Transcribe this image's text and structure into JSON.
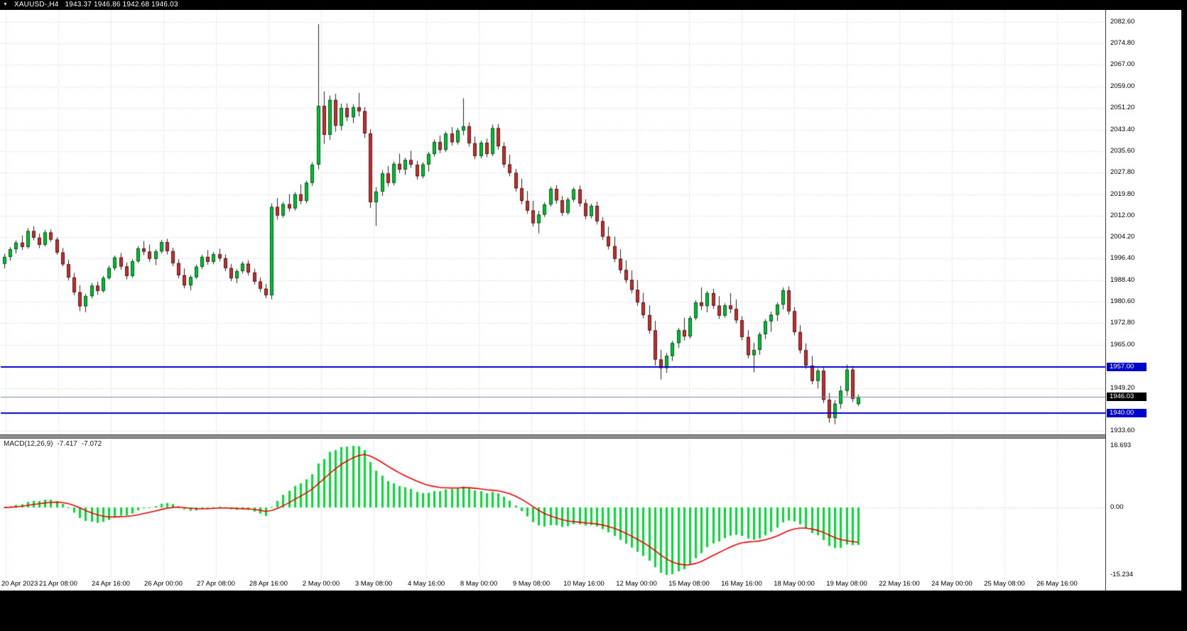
{
  "window": {
    "symbol_period": "XAUUSD-,H4",
    "ohlc_text": "1943.37 1946.86 1942.68 1946.03"
  },
  "macd": {
    "label": "MACD(12,26,9)",
    "value_main": "-7.417",
    "value_signal": "-7.072",
    "axis_labels": [
      "16.693",
      "0.00",
      "-15.234"
    ]
  },
  "price_axis": {
    "labels": [
      "2082.60",
      "2074.80",
      "2067.00",
      "2059.00",
      "2051.20",
      "2043.40",
      "2035.60",
      "2027.80",
      "2019.80",
      "2012.00",
      "2004.20",
      "1996.40",
      "1988.40",
      "1980.60",
      "1972.80",
      "1965.00",
      "1949.20",
      "1933.60"
    ],
    "level_tags": [
      {
        "text": "1957.00",
        "value": 1957.0,
        "style": "blue"
      },
      {
        "text": "1946.03",
        "value": 1946.03,
        "style": "black"
      },
      {
        "text": "1940.00",
        "value": 1940.0,
        "style": "blue"
      }
    ]
  },
  "time_axis": {
    "labels": [
      "20 Apr 2023",
      "21 Apr 08:00",
      "24 Apr 16:00",
      "26 Apr 00:00",
      "27 Apr 08:00",
      "28 Apr 16:00",
      "2 May 00:00",
      "3 May 08:00",
      "4 May 16:00",
      "8 May 00:00",
      "9 May 08:00",
      "10 May 16:00",
      "12 May 00:00",
      "15 May 08:00",
      "16 May 16:00",
      "18 May 00:00",
      "19 May 08:00",
      "22 May 16:00",
      "24 May 00:00",
      "25 May 08:00",
      "26 May 16:00"
    ]
  },
  "colors": {
    "bull": "#00C032",
    "bull_border": "#00581A",
    "bear": "#C03030",
    "bear_border": "#5E1414",
    "wick": "#222222",
    "grid": "#CDCDCD",
    "level_line": "#0000C8",
    "bid_line": "#7A8BA0",
    "hist": "#00DC32",
    "signal": "#E80000",
    "background": "#FFFFFF",
    "frame": "#000000"
  },
  "chart_data": {
    "type": "candlestick",
    "title": "XAUUSD-,H4",
    "symbol": "XAUUSD-",
    "timeframe": "H4",
    "last_bar": {
      "open": 1943.37,
      "high": 1946.86,
      "low": 1942.68,
      "close": 1946.03
    },
    "levels": [
      1957.0,
      1940.0
    ],
    "current_price": 1946.03,
    "price_range_shown": [
      1933.6,
      2082.6
    ],
    "indicator": {
      "type": "macd",
      "params": [
        12,
        26,
        9
      ],
      "main_last": -7.417,
      "signal_last": -7.072,
      "scale_max": 16.693,
      "scale_min": -15.234
    },
    "candles": [
      [
        1994.5,
        1998.2,
        1992.8,
        1997.0
      ],
      [
        1997.0,
        2000.5,
        1995.6,
        1999.8
      ],
      [
        1999.8,
        2003.0,
        1998.2,
        2002.2
      ],
      [
        2002.2,
        2004.8,
        1999.5,
        2000.6
      ],
      [
        2000.6,
        2007.5,
        2000.0,
        2006.4
      ],
      [
        2006.4,
        2008.2,
        2003.1,
        2004.0
      ],
      [
        2004.0,
        2005.5,
        2000.2,
        2001.4
      ],
      [
        2001.4,
        2006.8,
        2000.8,
        2005.9
      ],
      [
        2005.9,
        2007.0,
        2002.5,
        2003.3
      ],
      [
        2003.3,
        2004.1,
        1997.8,
        1998.6
      ],
      [
        1998.6,
        2000.2,
        1993.5,
        1994.3
      ],
      [
        1994.3,
        1996.0,
        1988.4,
        1989.5
      ],
      [
        1989.5,
        1991.2,
        1983.0,
        1984.1
      ],
      [
        1984.1,
        1986.6,
        1977.2,
        1979.0
      ],
      [
        1979.0,
        1983.5,
        1976.8,
        1982.7
      ],
      [
        1982.7,
        1987.4,
        1981.9,
        1986.5
      ],
      [
        1986.5,
        1988.0,
        1983.2,
        1984.6
      ],
      [
        1984.6,
        1990.1,
        1984.0,
        1989.3
      ],
      [
        1989.3,
        1993.8,
        1988.6,
        1992.9
      ],
      [
        1992.9,
        1997.5,
        1992.0,
        1996.8
      ],
      [
        1996.8,
        1998.4,
        1992.3,
        1993.5
      ],
      [
        1993.5,
        1995.0,
        1988.8,
        1990.0
      ],
      [
        1990.0,
        1996.2,
        1989.4,
        1995.4
      ],
      [
        1995.4,
        2000.9,
        1994.8,
        2000.1
      ],
      [
        2000.1,
        2002.8,
        1997.6,
        1998.9
      ],
      [
        1998.9,
        2001.5,
        1995.2,
        1996.3
      ],
      [
        1996.3,
        1999.8,
        1994.0,
        1999.0
      ],
      [
        1999.0,
        2003.2,
        1998.2,
        2002.4
      ],
      [
        2002.4,
        2003.6,
        1997.9,
        1999.1
      ],
      [
        1999.1,
        2000.3,
        1993.6,
        1994.7
      ],
      [
        1994.7,
        1996.1,
        1989.2,
        1990.3
      ],
      [
        1990.3,
        1992.8,
        1985.5,
        1986.6
      ],
      [
        1986.6,
        1990.4,
        1984.8,
        1989.6
      ],
      [
        1989.6,
        1994.2,
        1988.9,
        1993.4
      ],
      [
        1993.4,
        1997.8,
        1992.5,
        1997.0
      ],
      [
        1997.0,
        1999.5,
        1994.1,
        1995.2
      ],
      [
        1995.2,
        1998.8,
        1994.3,
        1998.0
      ],
      [
        1998.0,
        2000.0,
        1995.4,
        1996.5
      ],
      [
        1996.5,
        1997.9,
        1991.8,
        1992.9
      ],
      [
        1992.9,
        1994.4,
        1988.1,
        1989.2
      ],
      [
        1989.2,
        1992.6,
        1987.4,
        1991.8
      ],
      [
        1991.8,
        1995.3,
        1990.9,
        1994.5
      ],
      [
        1994.5,
        1995.8,
        1990.2,
        1991.3
      ],
      [
        1991.3,
        1992.7,
        1986.9,
        1988.0
      ],
      [
        1988.0,
        1989.5,
        1984.2,
        1985.4
      ],
      [
        1985.4,
        1987.1,
        1981.9,
        1983.0
      ],
      [
        1983.0,
        2016.5,
        1981.5,
        2015.2
      ],
      [
        2015.2,
        2018.4,
        2010.6,
        2012.1
      ],
      [
        2012.1,
        2017.0,
        2011.3,
        2016.2
      ],
      [
        2016.2,
        2019.8,
        2013.5,
        2014.7
      ],
      [
        2014.7,
        2020.6,
        2013.9,
        2019.8
      ],
      [
        2019.8,
        2023.4,
        2016.2,
        2017.4
      ],
      [
        2017.4,
        2024.8,
        2016.6,
        2024.0
      ],
      [
        2024.0,
        2031.5,
        2022.8,
        2030.6
      ],
      [
        2030.6,
        2081.8,
        2028.9,
        2052.0
      ],
      [
        2052.0,
        2057.3,
        2038.2,
        2041.5
      ],
      [
        2041.5,
        2055.8,
        2039.7,
        2054.2
      ],
      [
        2054.2,
        2056.4,
        2042.6,
        2044.8
      ],
      [
        2044.8,
        2052.9,
        2043.1,
        2051.3
      ],
      [
        2051.3,
        2053.0,
        2046.5,
        2047.9
      ],
      [
        2047.9,
        2052.6,
        2045.8,
        2051.5
      ],
      [
        2051.5,
        2056.8,
        2048.2,
        2050.1
      ],
      [
        2050.1,
        2051.6,
        2040.3,
        2042.0
      ],
      [
        2042.0,
        2043.5,
        2014.8,
        2016.9
      ],
      [
        2016.9,
        2022.4,
        2008.3,
        2020.8
      ],
      [
        2020.8,
        2028.6,
        2019.2,
        2027.4
      ],
      [
        2027.4,
        2030.1,
        2022.7,
        2024.0
      ],
      [
        2024.0,
        2031.8,
        2023.1,
        2030.9
      ],
      [
        2030.9,
        2034.6,
        2027.5,
        2028.8
      ],
      [
        2028.8,
        2033.2,
        2026.9,
        2032.3
      ],
      [
        2032.3,
        2035.7,
        2029.4,
        2030.6
      ],
      [
        2030.6,
        2032.0,
        2025.2,
        2026.4
      ],
      [
        2026.4,
        2031.5,
        2025.6,
        2030.7
      ],
      [
        2030.7,
        2035.3,
        2028.1,
        2034.5
      ],
      [
        2034.5,
        2039.8,
        2033.6,
        2038.9
      ],
      [
        2038.9,
        2041.2,
        2034.8,
        2036.0
      ],
      [
        2036.0,
        2042.7,
        2035.2,
        2041.9
      ],
      [
        2041.9,
        2044.3,
        2037.6,
        2038.8
      ],
      [
        2038.8,
        2043.9,
        2037.9,
        2043.1
      ],
      [
        2043.1,
        2054.8,
        2041.3,
        2044.6
      ],
      [
        2044.6,
        2046.0,
        2037.2,
        2038.4
      ],
      [
        2038.4,
        2040.9,
        2032.6,
        2033.8
      ],
      [
        2033.8,
        2039.4,
        2032.9,
        2038.6
      ],
      [
        2038.6,
        2040.1,
        2033.3,
        2034.5
      ],
      [
        2034.5,
        2045.2,
        2033.7,
        2043.9
      ],
      [
        2043.9,
        2045.4,
        2036.1,
        2037.3
      ],
      [
        2037.3,
        2038.8,
        2029.5,
        2030.7
      ],
      [
        2030.7,
        2034.2,
        2026.4,
        2027.6
      ],
      [
        2027.6,
        2029.1,
        2020.8,
        2022.0
      ],
      [
        2022.0,
        2025.5,
        2016.2,
        2017.4
      ],
      [
        2017.4,
        2021.0,
        2012.7,
        2013.9
      ],
      [
        2013.9,
        2017.4,
        2008.1,
        2009.3
      ],
      [
        2009.3,
        2013.8,
        2005.6,
        2012.4
      ],
      [
        2012.4,
        2016.9,
        2011.5,
        2016.1
      ],
      [
        2016.1,
        2022.6,
        2015.3,
        2021.8
      ],
      [
        2021.8,
        2023.1,
        2016.4,
        2017.6
      ],
      [
        2017.6,
        2019.2,
        2011.9,
        2013.1
      ],
      [
        2013.1,
        2018.7,
        2012.3,
        2017.9
      ],
      [
        2017.9,
        2022.4,
        2017.0,
        2021.6
      ],
      [
        2021.6,
        2023.0,
        2015.3,
        2016.5
      ],
      [
        2016.5,
        2018.0,
        2010.7,
        2011.9
      ],
      [
        2011.9,
        2016.4,
        2011.0,
        2015.6
      ],
      [
        2015.6,
        2017.1,
        2008.8,
        2010.0
      ],
      [
        2010.0,
        2011.5,
        2003.2,
        2004.4
      ],
      [
        2004.4,
        2008.0,
        1999.7,
        2000.9
      ],
      [
        2000.9,
        2004.4,
        1995.1,
        1996.3
      ],
      [
        1996.3,
        1999.8,
        1991.0,
        1992.2
      ],
      [
        1992.2,
        1995.7,
        1987.4,
        1988.6
      ],
      [
        1988.6,
        1992.1,
        1983.8,
        1985.0
      ],
      [
        1985.0,
        1988.5,
        1979.2,
        1980.4
      ],
      [
        1980.4,
        1983.9,
        1974.6,
        1975.8
      ],
      [
        1975.8,
        1979.3,
        1969.0,
        1970.2
      ],
      [
        1970.2,
        1973.7,
        1957.4,
        1959.6
      ],
      [
        1959.6,
        1963.1,
        1952.3,
        1956.5
      ],
      [
        1956.5,
        1962.0,
        1954.7,
        1960.9
      ],
      [
        1960.9,
        1966.4,
        1959.1,
        1965.6
      ],
      [
        1965.6,
        1971.1,
        1963.8,
        1970.3
      ],
      [
        1970.3,
        1974.8,
        1966.5,
        1968.0
      ],
      [
        1968.0,
        1975.5,
        1967.2,
        1974.7
      ],
      [
        1974.7,
        1981.2,
        1973.9,
        1980.4
      ],
      [
        1980.4,
        1985.9,
        1977.6,
        1979.1
      ],
      [
        1979.1,
        1984.6,
        1976.8,
        1983.8
      ],
      [
        1983.8,
        1985.3,
        1978.0,
        1979.2
      ],
      [
        1979.2,
        1982.7,
        1974.4,
        1975.6
      ],
      [
        1975.6,
        1980.1,
        1974.8,
        1979.3
      ],
      [
        1979.3,
        1983.8,
        1976.5,
        1978.0
      ],
      [
        1978.0,
        1981.5,
        1972.7,
        1973.9
      ],
      [
        1973.9,
        1975.4,
        1966.6,
        1967.8
      ],
      [
        1967.8,
        1970.3,
        1960.0,
        1961.2
      ],
      [
        1961.2,
        1965.7,
        1954.9,
        1963.1
      ],
      [
        1963.1,
        1969.6,
        1961.3,
        1968.8
      ],
      [
        1968.8,
        1974.3,
        1967.0,
        1973.5
      ],
      [
        1973.5,
        1977.0,
        1969.7,
        1975.9
      ],
      [
        1975.9,
        1980.4,
        1973.6,
        1979.6
      ],
      [
        1979.6,
        1985.9,
        1977.8,
        1984.8
      ],
      [
        1984.8,
        1986.3,
        1976.0,
        1977.2
      ],
      [
        1977.2,
        1978.7,
        1968.4,
        1969.6
      ],
      [
        1969.6,
        1972.1,
        1961.8,
        1963.0
      ],
      [
        1963.0,
        1965.5,
        1956.2,
        1957.4
      ],
      [
        1957.4,
        1960.9,
        1950.6,
        1951.8
      ],
      [
        1951.8,
        1956.3,
        1949.0,
        1955.5
      ],
      [
        1955.5,
        1957.0,
        1943.7,
        1944.9
      ],
      [
        1944.9,
        1947.4,
        1936.6,
        1938.3
      ],
      [
        1938.3,
        1944.8,
        1936.0,
        1943.5
      ],
      [
        1943.5,
        1950.0,
        1941.7,
        1948.2
      ],
      [
        1948.2,
        1957.7,
        1946.4,
        1955.9
      ],
      [
        1955.9,
        1957.2,
        1944.1,
        1945.3
      ],
      [
        1943.37,
        1946.86,
        1942.68,
        1946.03
      ]
    ]
  }
}
